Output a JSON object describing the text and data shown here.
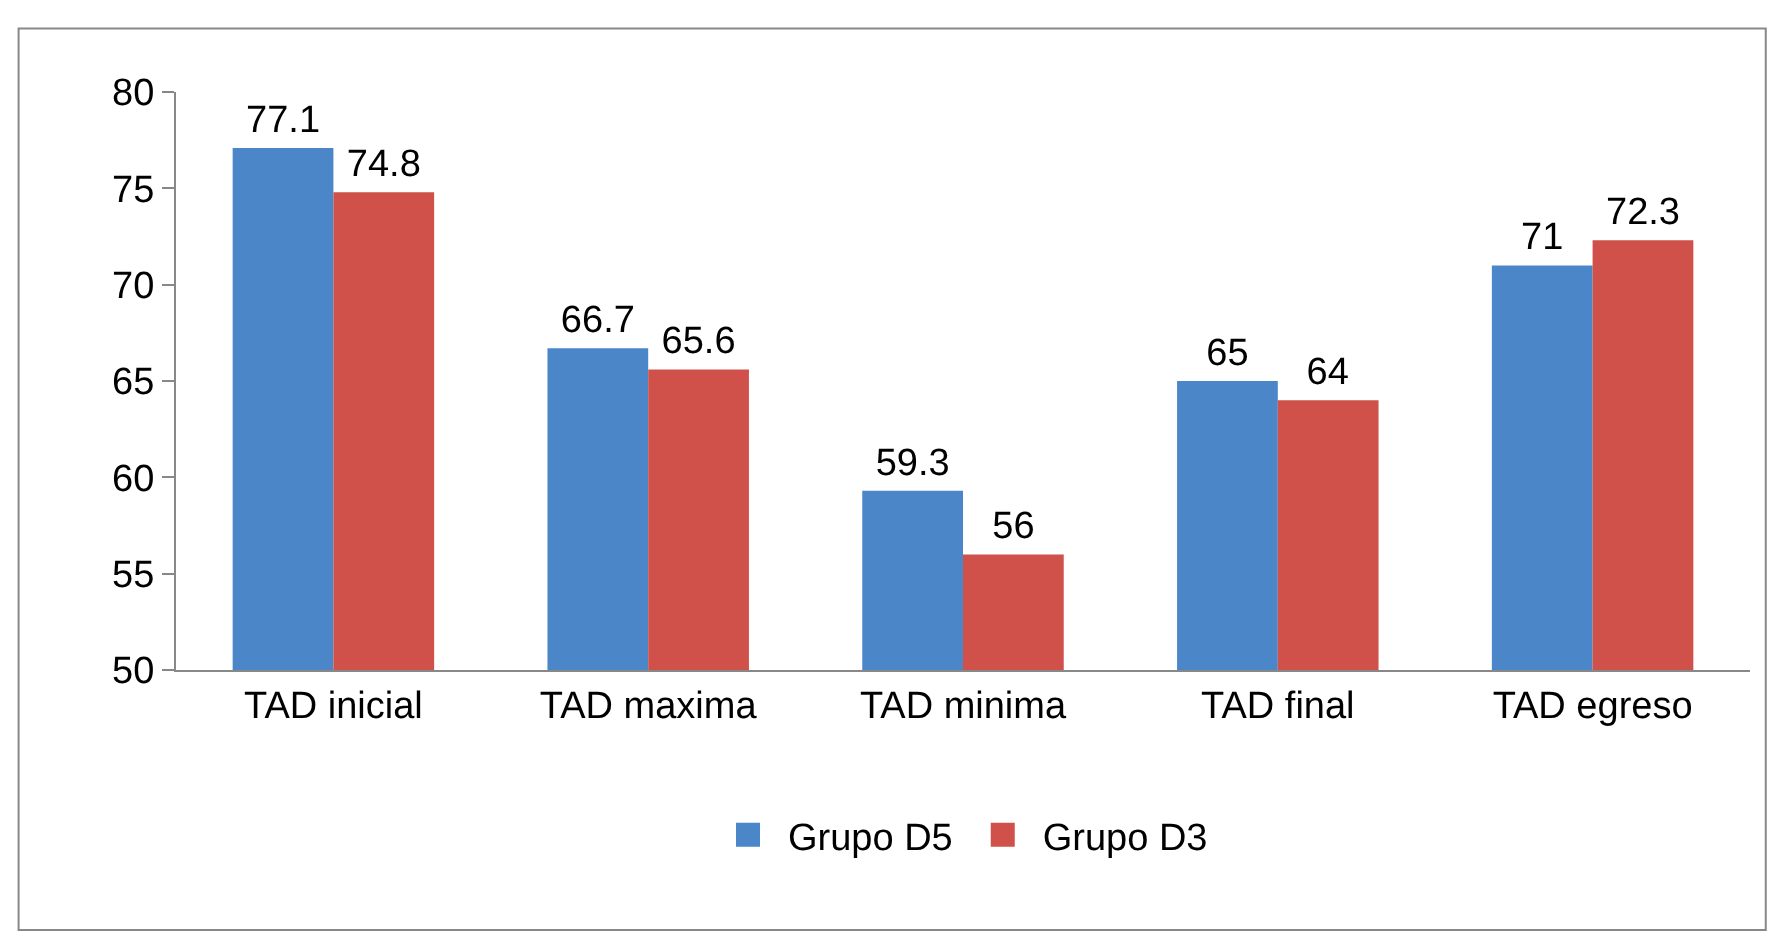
{
  "chart_data": {
    "type": "bar",
    "categories": [
      "TAD inicial",
      "TAD maxima",
      "TAD minima",
      "TAD final",
      "TAD egreso"
    ],
    "series": [
      {
        "name": "Grupo D5",
        "color": "#4a86c8",
        "values": [
          77.1,
          66.7,
          59.3,
          65,
          71
        ]
      },
      {
        "name": "Grupo D3",
        "color": "#d0504a",
        "values": [
          74.8,
          65.6,
          56,
          64,
          72.3
        ]
      }
    ],
    "ylim": [
      50,
      80
    ],
    "yticks": [
      50,
      55,
      60,
      65,
      70,
      75,
      80
    ],
    "data_labels": true,
    "legend": "bottom"
  }
}
